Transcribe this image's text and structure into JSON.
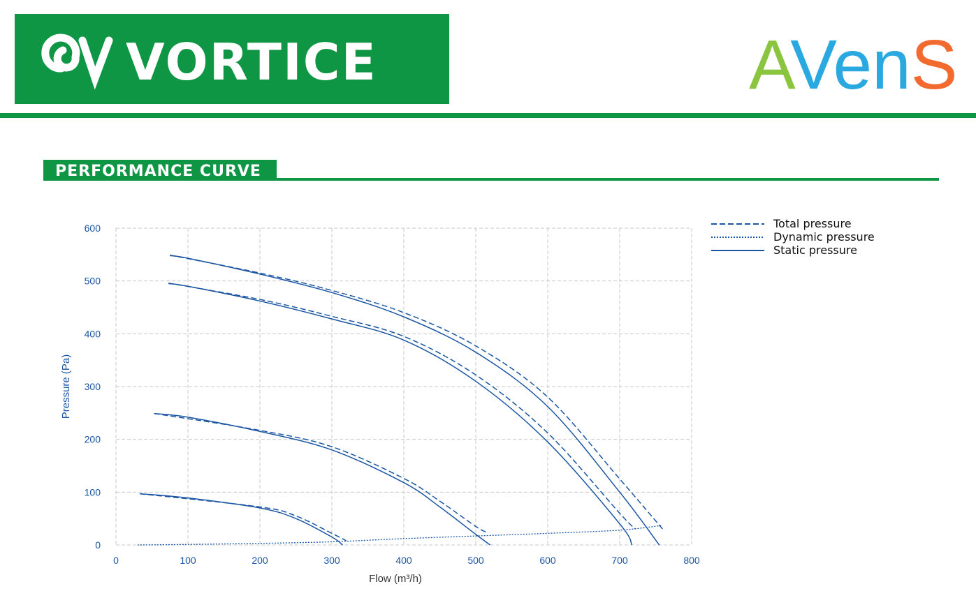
{
  "header": {
    "brand": "VORTICE",
    "partner": [
      "A",
      "Ven",
      "S"
    ]
  },
  "section_title": "PERFORMANCE CURVE",
  "chart_data": {
    "type": "line",
    "xlabel": "Flow (m³/h)",
    "ylabel": "Pressure (Pa)",
    "xlim": [
      0,
      800
    ],
    "ylim": [
      0,
      600
    ],
    "xticks": [
      0,
      100,
      200,
      300,
      400,
      500,
      600,
      700,
      800
    ],
    "yticks": [
      0,
      100,
      200,
      300,
      400,
      500,
      600
    ],
    "grid": true,
    "color": "#1a55a3",
    "legend": [
      {
        "name": "Total pressure",
        "style": "dashed"
      },
      {
        "name": "Dynamic pressure",
        "style": "dotted"
      },
      {
        "name": "Static pressure",
        "style": "solid"
      }
    ],
    "series": [
      {
        "style": "solid",
        "x": [
          75,
          100,
          200,
          300,
          400,
          500,
          600,
          700,
          755
        ],
        "values": [
          548,
          543,
          513,
          478,
          432,
          365,
          262,
          100,
          0
        ]
      },
      {
        "style": "dashed",
        "x": [
          75,
          200,
          300,
          400,
          500,
          600,
          700,
          761
        ],
        "values": [
          549,
          515,
          482,
          440,
          377,
          280,
          125,
          28
        ]
      },
      {
        "style": "solid",
        "x": [
          73,
          100,
          200,
          300,
          400,
          500,
          600,
          700,
          717
        ],
        "values": [
          495,
          490,
          462,
          428,
          388,
          310,
          195,
          40,
          0
        ]
      },
      {
        "style": "dashed",
        "x": [
          73,
          200,
          300,
          400,
          500,
          600,
          700,
          722
        ],
        "values": [
          496,
          465,
          433,
          395,
          322,
          212,
          60,
          30
        ]
      },
      {
        "style": "solid",
        "x": [
          53,
          100,
          200,
          300,
          400,
          450,
          500,
          520
        ],
        "values": [
          249,
          242,
          215,
          180,
          118,
          72,
          20,
          0
        ]
      },
      {
        "style": "dashed",
        "x": [
          53,
          200,
          300,
          400,
          450,
          500,
          515
        ],
        "values": [
          249,
          217,
          186,
          126,
          83,
          35,
          24
        ]
      },
      {
        "style": "solid",
        "x": [
          33,
          100,
          200,
          250,
          300,
          315
        ],
        "values": [
          97,
          89,
          70,
          50,
          15,
          0
        ]
      },
      {
        "style": "dashed",
        "x": [
          33,
          200,
          250,
          300,
          320
        ],
        "values": [
          97,
          72,
          55,
          22,
          8
        ]
      },
      {
        "style": "dotted",
        "x": [
          30,
          100,
          200,
          300,
          400,
          500,
          600,
          700,
          759
        ],
        "values": [
          0,
          1,
          3,
          6,
          12,
          17,
          22,
          28,
          37
        ]
      }
    ]
  }
}
